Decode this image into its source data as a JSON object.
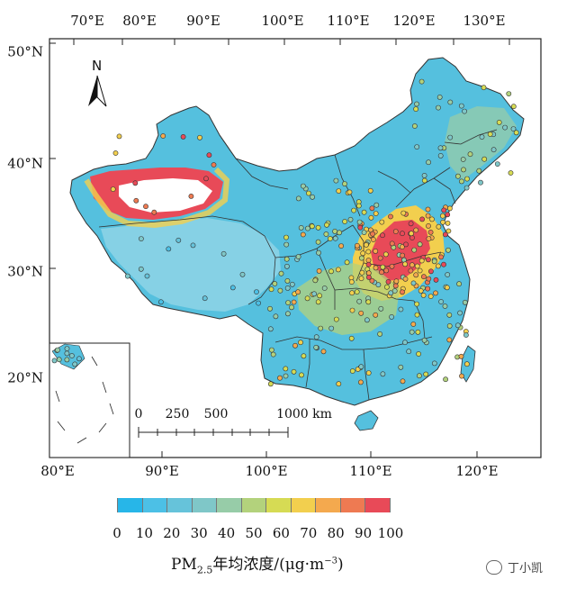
{
  "map": {
    "top_lon_labels": [
      "70°E",
      "80°E",
      "90°E",
      "100°E",
      "110°E",
      "120°E",
      "130°E"
    ],
    "bottom_lon_labels": [
      "80°E",
      "90°E",
      "100°E",
      "110°E",
      "120°E"
    ],
    "lat_labels": [
      "50°N",
      "40°N",
      "30°N",
      "20°N"
    ],
    "north_label": "N",
    "scale_bar": [
      "0",
      "250",
      "500",
      "1000 km"
    ]
  },
  "legend": {
    "ticks": [
      "0",
      "10",
      "20",
      "30",
      "40",
      "50",
      "60",
      "70",
      "80",
      "90",
      "100"
    ],
    "colors": [
      "#27b6e8",
      "#4cc0e6",
      "#66c3da",
      "#7fc7c8",
      "#97cca8",
      "#b3d27c",
      "#d6db54",
      "#f2cf4e",
      "#f4a94e",
      "#ee7a52",
      "#e84a58"
    ],
    "title_prefix": "PM",
    "title_sub": "2.5",
    "title_mid": "年均浓度/(μg·m",
    "title_sup": "−3",
    "title_suffix": ")"
  },
  "watermark": {
    "text": "丁小凯"
  }
}
